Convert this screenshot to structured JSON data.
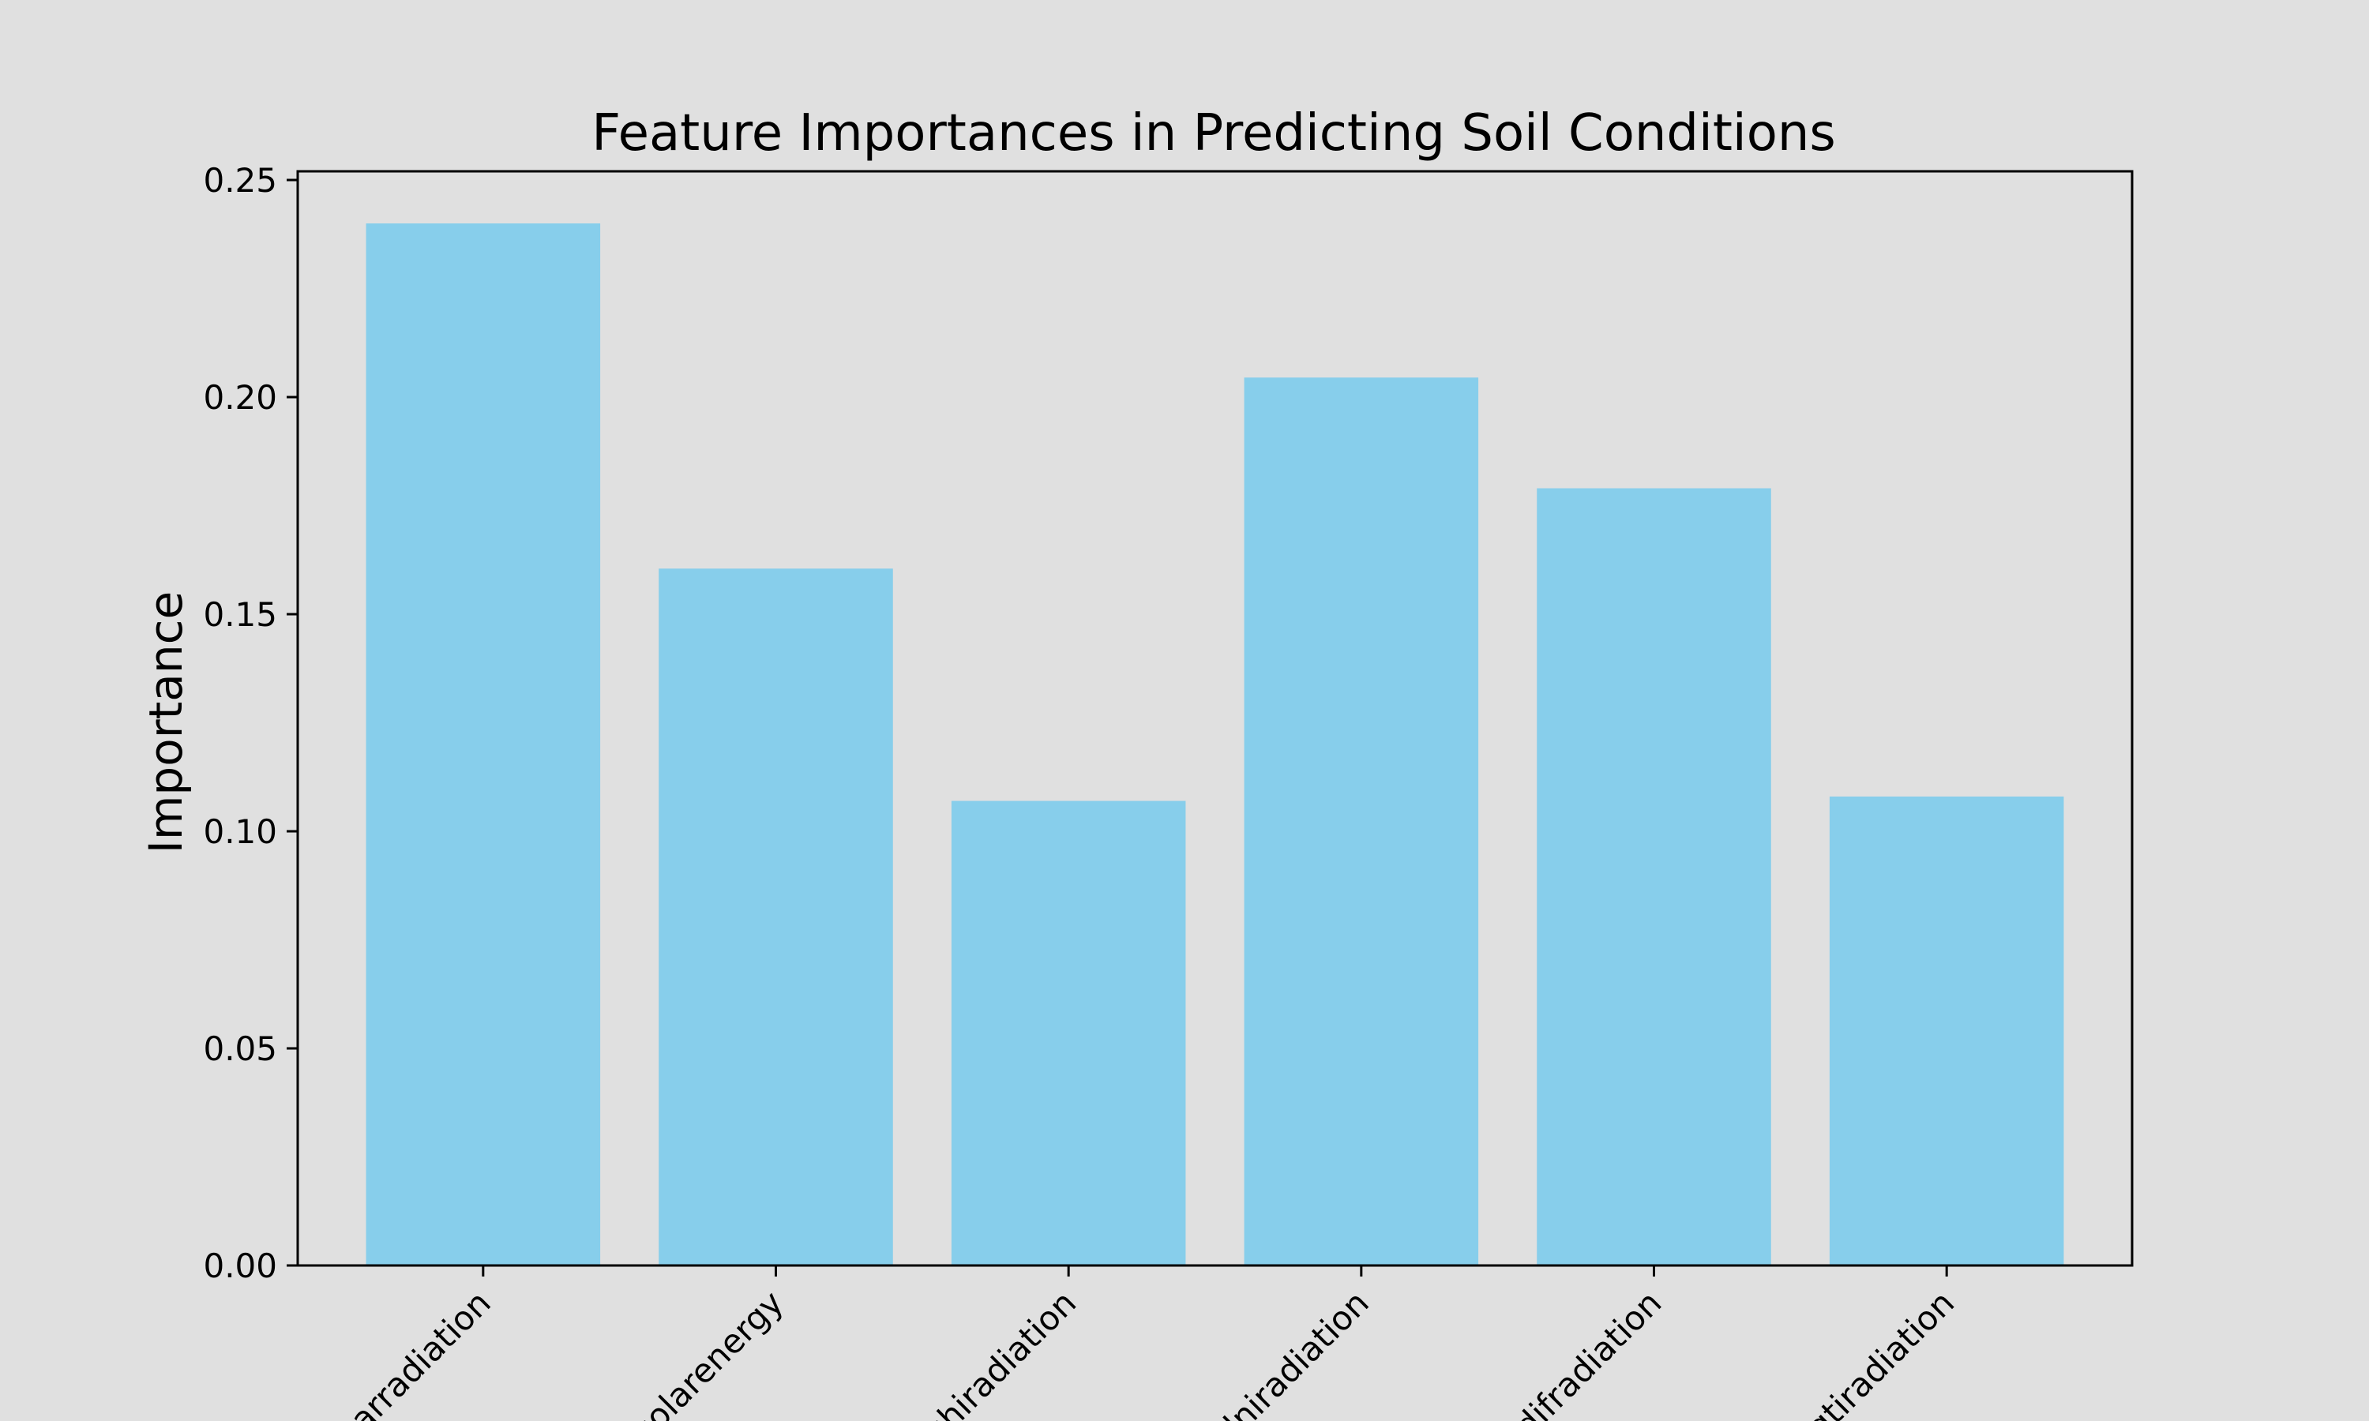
{
  "chart_data": {
    "type": "bar",
    "title": "Feature Importances in Predicting Soil Conditions",
    "xlabel": "",
    "ylabel": "Importance",
    "categories": [
      "starradiation",
      "solarenergy",
      "ghiradiation",
      "dniradiation",
      "difradiation",
      "gtiradiation"
    ],
    "values": [
      0.24,
      0.1605,
      0.107,
      0.2045,
      0.179,
      0.108
    ],
    "ylim": [
      0,
      0.252
    ],
    "yticks": [
      "0.00",
      "0.05",
      "0.10",
      "0.15",
      "0.20",
      "0.25"
    ],
    "grid": false,
    "bar_color": "#87ceeb",
    "background_color": "#e0e0e0",
    "axis_color": "#000000"
  }
}
